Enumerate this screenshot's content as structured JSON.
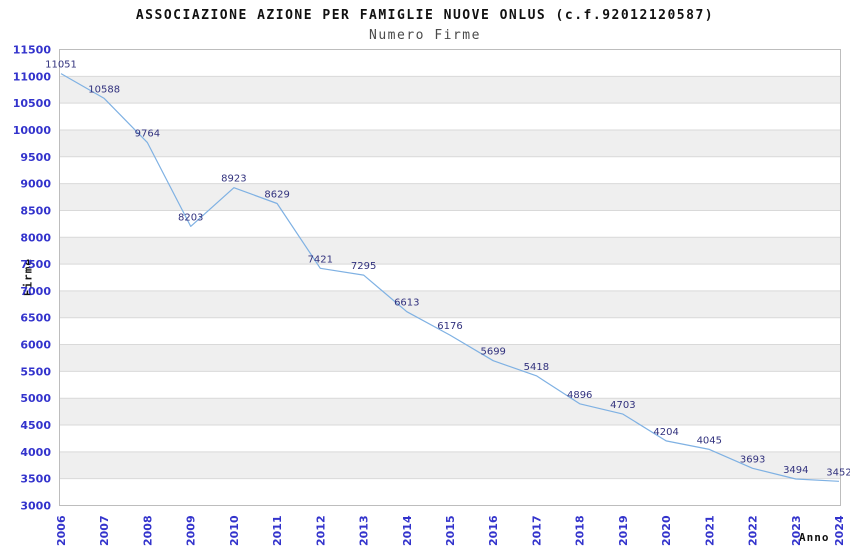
{
  "chart_data": {
    "type": "line",
    "title": "ASSOCIAZIONE AZIONE PER FAMIGLIE NUOVE ONLUS (c.f.92012120587)",
    "subtitle": "Numero Firme",
    "xlabel": "Anno",
    "ylabel": "Firme",
    "categories": [
      "2006",
      "2007",
      "2008",
      "2009",
      "2010",
      "2011",
      "2012",
      "2013",
      "2014",
      "2015",
      "2016",
      "2017",
      "2018",
      "2019",
      "2020",
      "2021",
      "2022",
      "2023",
      "2024"
    ],
    "values": [
      11051,
      10588,
      9764,
      8203,
      8923,
      8629,
      7421,
      7295,
      6613,
      6176,
      5699,
      5418,
      4896,
      4703,
      4204,
      4045,
      3693,
      3494,
      3452
    ],
    "ylim": [
      3000,
      11500
    ],
    "ytick_step": 500,
    "grid": true,
    "legend_position": "none",
    "point_labels_visible": true,
    "colors": {
      "line": "#7fb1e3",
      "point_label": "#32327e",
      "tick_label": "#3333cc",
      "band_gray": "#efefef",
      "band_white": "#ffffff",
      "gridline": "#d9d9d9",
      "plot_border": "#bdbdbd",
      "title": "#111111",
      "subtitle": "#4a4a4a",
      "axis_title": "#111111"
    }
  }
}
